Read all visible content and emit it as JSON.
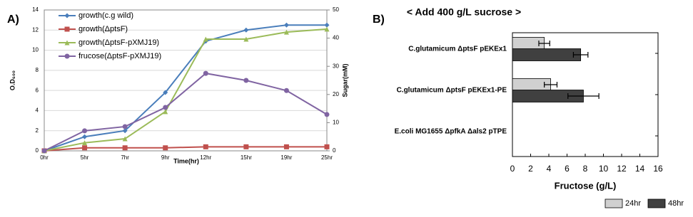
{
  "chart_data": [
    {
      "type": "line",
      "panel_label": "A)",
      "x_label": "Time(hr)",
      "y_label": "O.D₆₀₀",
      "y2_label": "Sugar(mM)",
      "categories": [
        "0hr",
        "5hr",
        "7hr",
        "9hr",
        "12hr",
        "15hr",
        "19hr",
        "25hr"
      ],
      "ylim": [
        0,
        14
      ],
      "yticks": [
        0,
        2,
        4,
        6,
        8,
        10,
        12,
        14
      ],
      "y2lim": [
        0,
        50
      ],
      "y2ticks": [
        0,
        10,
        20,
        30,
        40,
        50
      ],
      "legend": "upper left",
      "series": [
        {
          "name": "growth(c.g wild)",
          "color": "#4a7ebb",
          "marker": "diamond",
          "values": [
            0,
            1.4,
            2.0,
            5.8,
            10.9,
            12.0,
            12.5,
            12.5
          ]
        },
        {
          "name": "growth(ΔptsF)",
          "color": "#c0504d",
          "marker": "square",
          "values": [
            0,
            0.3,
            0.3,
            0.3,
            0.4,
            0.4,
            0.4,
            0.4
          ]
        },
        {
          "name": "growth(ΔptsF-pXMJ19)",
          "color": "#9bbb59",
          "marker": "triangle",
          "values": [
            0,
            0.8,
            1.2,
            3.9,
            11.1,
            11.1,
            11.8,
            12.1
          ]
        },
        {
          "name": "frucose(ΔptsF-pXMJ19)",
          "color": "#8064a2",
          "marker": "x",
          "axis": "y2",
          "values": [
            0,
            7.1,
            8.6,
            15.4,
            27.5,
            25,
            21.4,
            12.9
          ]
        }
      ]
    },
    {
      "type": "hbar",
      "panel_label": "B)",
      "title": "< Add 400 g/L sucrose >",
      "x_label": "Fructose (g/L)",
      "categories": [
        "C.glutamicum ΔptsF pEKEx1",
        "C.glutamicum ΔptsF pEKEx1-PE",
        "E.coli MG1655 ΔpfkA Δals2 pTPE"
      ],
      "xlim": [
        0,
        16
      ],
      "xticks": [
        0,
        2,
        4,
        6,
        8,
        10,
        12,
        14,
        16
      ],
      "legend": "bottom right",
      "series": [
        {
          "name": "24hr",
          "color": "#d0d0d0",
          "values": [
            3.5,
            4.2,
            0
          ],
          "errors": [
            0.6,
            0.7,
            0
          ]
        },
        {
          "name": "48hr",
          "color": "#404040",
          "values": [
            7.5,
            7.8,
            0
          ],
          "errors": [
            0.8,
            1.7,
            0
          ]
        }
      ]
    }
  ]
}
